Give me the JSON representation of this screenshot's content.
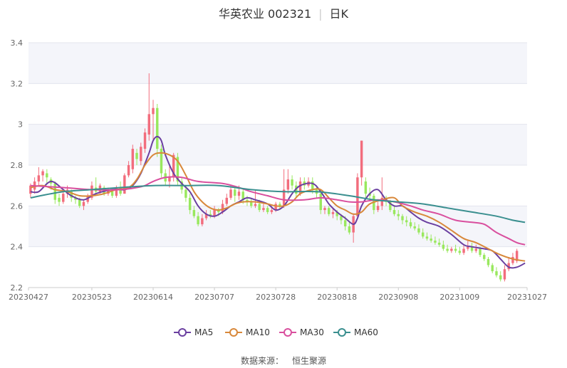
{
  "title": {
    "name": "华英农业 002321",
    "period": "日K"
  },
  "source": {
    "label": "数据来源：",
    "value": "恒生聚源"
  },
  "chart_data": {
    "type": "candlestick",
    "ylim": [
      2.2,
      3.4
    ],
    "yticks": [
      2.2,
      2.4,
      2.6,
      2.8,
      3,
      3.2,
      3.4
    ],
    "grid": true,
    "legend_position": "bottom",
    "xticks": [
      {
        "label": "20230427",
        "index": 0
      },
      {
        "label": "20230523",
        "index": 15
      },
      {
        "label": "20230614",
        "index": 30
      },
      {
        "label": "20230707",
        "index": 45
      },
      {
        "label": "20230728",
        "index": 60
      },
      {
        "label": "20230818",
        "index": 75
      },
      {
        "label": "20230908",
        "index": 90
      },
      {
        "label": "20231009",
        "index": 105
      },
      {
        "label": "20231027",
        "index": 119
      }
    ],
    "candles": [
      [
        2.66,
        2.7,
        2.64,
        2.71
      ],
      [
        2.68,
        2.72,
        2.66,
        2.74
      ],
      [
        2.72,
        2.75,
        2.7,
        2.79
      ],
      [
        2.75,
        2.77,
        2.72,
        2.78
      ],
      [
        2.76,
        2.74,
        2.71,
        2.78
      ],
      [
        2.73,
        2.71,
        2.68,
        2.74
      ],
      [
        2.71,
        2.63,
        2.61,
        2.72
      ],
      [
        2.64,
        2.62,
        2.6,
        2.66
      ],
      [
        2.62,
        2.66,
        2.61,
        2.67
      ],
      [
        2.66,
        2.68,
        2.64,
        2.7
      ],
      [
        2.67,
        2.64,
        2.62,
        2.68
      ],
      [
        2.64,
        2.63,
        2.61,
        2.65
      ],
      [
        2.63,
        2.6,
        2.59,
        2.64
      ],
      [
        2.6,
        2.62,
        2.58,
        2.63
      ],
      [
        2.62,
        2.65,
        2.61,
        2.66
      ],
      [
        2.64,
        2.7,
        2.63,
        2.72
      ],
      [
        2.69,
        2.67,
        2.65,
        2.74
      ],
      [
        2.67,
        2.7,
        2.66,
        2.71
      ],
      [
        2.69,
        2.66,
        2.65,
        2.7
      ],
      [
        2.66,
        2.68,
        2.65,
        2.69
      ],
      [
        2.67,
        2.65,
        2.64,
        2.68
      ],
      [
        2.65,
        2.69,
        2.64,
        2.7
      ],
      [
        2.69,
        2.66,
        2.65,
        2.72
      ],
      [
        2.66,
        2.75,
        2.66,
        2.76
      ],
      [
        2.75,
        2.8,
        2.74,
        2.82
      ],
      [
        2.78,
        2.88,
        2.76,
        2.9
      ],
      [
        2.86,
        2.83,
        2.8,
        2.88
      ],
      [
        2.82,
        2.89,
        2.8,
        2.91
      ],
      [
        2.88,
        2.96,
        2.86,
        2.98
      ],
      [
        2.95,
        3.05,
        2.92,
        3.25
      ],
      [
        3.05,
        3.08,
        2.92,
        3.12
      ],
      [
        3.08,
        2.88,
        2.84,
        3.1
      ],
      [
        2.88,
        2.76,
        2.74,
        2.9
      ],
      [
        2.76,
        2.72,
        2.7,
        2.78
      ],
      [
        2.72,
        2.74,
        2.69,
        2.8
      ],
      [
        2.74,
        2.85,
        2.72,
        2.86
      ],
      [
        2.84,
        2.72,
        2.7,
        2.86
      ],
      [
        2.72,
        2.68,
        2.66,
        2.74
      ],
      [
        2.68,
        2.64,
        2.62,
        2.7
      ],
      [
        2.64,
        2.58,
        2.56,
        2.66
      ],
      [
        2.58,
        2.55,
        2.54,
        2.6
      ],
      [
        2.55,
        2.51,
        2.5,
        2.57
      ],
      [
        2.51,
        2.54,
        2.5,
        2.56
      ],
      [
        2.54,
        2.56,
        2.53,
        2.58
      ],
      [
        2.56,
        2.55,
        2.54,
        2.58
      ],
      [
        2.55,
        2.58,
        2.54,
        2.6
      ],
      [
        2.58,
        2.57,
        2.55,
        2.59
      ],
      [
        2.57,
        2.61,
        2.56,
        2.63
      ],
      [
        2.61,
        2.64,
        2.6,
        2.66
      ],
      [
        2.64,
        2.68,
        2.63,
        2.7
      ],
      [
        2.68,
        2.65,
        2.62,
        2.7
      ],
      [
        2.65,
        2.67,
        2.63,
        2.7
      ],
      [
        2.67,
        2.63,
        2.61,
        2.68
      ],
      [
        2.63,
        2.62,
        2.6,
        2.65
      ],
      [
        2.62,
        2.6,
        2.59,
        2.64
      ],
      [
        2.6,
        2.61,
        2.59,
        2.68
      ],
      [
        2.61,
        2.58,
        2.57,
        2.63
      ],
      [
        2.58,
        2.59,
        2.57,
        2.61
      ],
      [
        2.59,
        2.57,
        2.56,
        2.6
      ],
      [
        2.57,
        2.58,
        2.56,
        2.6
      ],
      [
        2.58,
        2.61,
        2.57,
        2.62
      ],
      [
        2.61,
        2.6,
        2.58,
        2.62
      ],
      [
        2.6,
        2.68,
        2.59,
        2.78
      ],
      [
        2.68,
        2.73,
        2.66,
        2.78
      ],
      [
        2.73,
        2.7,
        2.68,
        2.75
      ],
      [
        2.7,
        2.66,
        2.64,
        2.72
      ],
      [
        2.66,
        2.72,
        2.65,
        2.74
      ],
      [
        2.72,
        2.7,
        2.68,
        2.74
      ],
      [
        2.7,
        2.72,
        2.69,
        2.74
      ],
      [
        2.72,
        2.68,
        2.66,
        2.74
      ],
      [
        2.68,
        2.66,
        2.64,
        2.7
      ],
      [
        2.66,
        2.58,
        2.56,
        2.68
      ],
      [
        2.58,
        2.59,
        2.56,
        2.6
      ],
      [
        2.59,
        2.56,
        2.55,
        2.6
      ],
      [
        2.56,
        2.57,
        2.54,
        2.59
      ],
      [
        2.57,
        2.55,
        2.53,
        2.58
      ],
      [
        2.55,
        2.53,
        2.51,
        2.56
      ],
      [
        2.53,
        2.5,
        2.48,
        2.55
      ],
      [
        2.5,
        2.47,
        2.46,
        2.52
      ],
      [
        2.47,
        2.55,
        2.42,
        2.56
      ],
      [
        2.55,
        2.74,
        2.54,
        2.76
      ],
      [
        2.74,
        2.92,
        2.7,
        2.92
      ],
      [
        2.72,
        2.66,
        2.64,
        2.74
      ],
      [
        2.66,
        2.65,
        2.63,
        2.69
      ],
      [
        2.65,
        2.58,
        2.56,
        2.66
      ],
      [
        2.58,
        2.6,
        2.57,
        2.62
      ],
      [
        2.6,
        2.64,
        2.58,
        2.74
      ],
      [
        2.64,
        2.62,
        2.6,
        2.65
      ],
      [
        2.62,
        2.58,
        2.57,
        2.63
      ],
      [
        2.58,
        2.56,
        2.55,
        2.6
      ],
      [
        2.56,
        2.55,
        2.53,
        2.58
      ],
      [
        2.55,
        2.53,
        2.51,
        2.56
      ],
      [
        2.53,
        2.52,
        2.5,
        2.55
      ],
      [
        2.52,
        2.5,
        2.49,
        2.54
      ],
      [
        2.5,
        2.49,
        2.48,
        2.52
      ],
      [
        2.49,
        2.47,
        2.46,
        2.51
      ],
      [
        2.47,
        2.45,
        2.44,
        2.49
      ],
      [
        2.45,
        2.44,
        2.43,
        2.47
      ],
      [
        2.44,
        2.43,
        2.42,
        2.46
      ],
      [
        2.43,
        2.42,
        2.41,
        2.45
      ],
      [
        2.42,
        2.41,
        2.4,
        2.44
      ],
      [
        2.41,
        2.39,
        2.38,
        2.43
      ],
      [
        2.39,
        2.38,
        2.37,
        2.41
      ],
      [
        2.38,
        2.39,
        2.37,
        2.4
      ],
      [
        2.39,
        2.38,
        2.37,
        2.41
      ],
      [
        2.38,
        2.37,
        2.36,
        2.4
      ],
      [
        2.37,
        2.39,
        2.36,
        2.41
      ],
      [
        2.39,
        2.4,
        2.38,
        2.43
      ],
      [
        2.4,
        2.38,
        2.37,
        2.42
      ],
      [
        2.38,
        2.39,
        2.37,
        2.41
      ],
      [
        2.39,
        2.36,
        2.35,
        2.4
      ],
      [
        2.36,
        2.34,
        2.33,
        2.37
      ],
      [
        2.34,
        2.31,
        2.3,
        2.35
      ],
      [
        2.31,
        2.28,
        2.27,
        2.32
      ],
      [
        2.28,
        2.26,
        2.25,
        2.3
      ],
      [
        2.26,
        2.24,
        2.23,
        2.28
      ],
      [
        2.24,
        2.29,
        2.23,
        2.31
      ],
      [
        2.29,
        2.32,
        2.28,
        2.35
      ],
      [
        2.32,
        2.35,
        2.31,
        2.37
      ],
      [
        2.33,
        2.38,
        2.32,
        2.39
      ]
    ],
    "series": [
      {
        "name": "MA5",
        "color": "#6a3fa0",
        "anchors": [
          [
            0,
            2.67
          ],
          [
            2,
            2.67
          ],
          [
            5,
            2.72
          ],
          [
            8,
            2.68
          ],
          [
            10,
            2.65
          ],
          [
            13,
            2.63
          ],
          [
            16,
            2.66
          ],
          [
            20,
            2.68
          ],
          [
            23,
            2.68
          ],
          [
            25,
            2.7
          ],
          [
            27,
            2.76
          ],
          [
            29,
            2.86
          ],
          [
            30,
            2.92
          ],
          [
            31,
            2.94
          ],
          [
            32,
            2.92
          ],
          [
            33,
            2.85
          ],
          [
            35,
            2.76
          ],
          [
            37,
            2.71
          ],
          [
            39,
            2.67
          ],
          [
            41,
            2.6
          ],
          [
            43,
            2.56
          ],
          [
            45,
            2.55
          ],
          [
            47,
            2.57
          ],
          [
            49,
            2.6
          ],
          [
            51,
            2.62
          ],
          [
            53,
            2.64
          ],
          [
            55,
            2.63
          ],
          [
            58,
            2.61
          ],
          [
            60,
            2.58
          ],
          [
            62,
            2.6
          ],
          [
            64,
            2.66
          ],
          [
            66,
            2.7
          ],
          [
            69,
            2.71
          ],
          [
            71,
            2.67
          ],
          [
            73,
            2.61
          ],
          [
            75,
            2.57
          ],
          [
            77,
            2.54
          ],
          [
            79,
            2.51
          ],
          [
            80,
            2.54
          ],
          [
            81,
            2.6
          ],
          [
            83,
            2.66
          ],
          [
            85,
            2.68
          ],
          [
            87,
            2.63
          ],
          [
            89,
            2.6
          ],
          [
            91,
            2.6
          ],
          [
            93,
            2.57
          ],
          [
            95,
            2.54
          ],
          [
            97,
            2.52
          ],
          [
            100,
            2.5
          ],
          [
            103,
            2.46
          ],
          [
            106,
            2.41
          ],
          [
            108,
            2.4
          ],
          [
            111,
            2.39
          ],
          [
            113,
            2.38
          ],
          [
            115,
            2.34
          ],
          [
            117,
            2.3
          ],
          [
            119,
            2.3
          ],
          [
            121,
            2.32
          ]
        ]
      },
      {
        "name": "MA10",
        "color": "#d8883a",
        "anchors": [
          [
            0,
            2.69
          ],
          [
            3,
            2.7
          ],
          [
            6,
            2.68
          ],
          [
            9,
            2.67
          ],
          [
            12,
            2.65
          ],
          [
            15,
            2.65
          ],
          [
            18,
            2.66
          ],
          [
            21,
            2.68
          ],
          [
            24,
            2.69
          ],
          [
            26,
            2.73
          ],
          [
            28,
            2.8
          ],
          [
            30,
            2.85
          ],
          [
            32,
            2.86
          ],
          [
            34,
            2.85
          ],
          [
            36,
            2.82
          ],
          [
            38,
            2.75
          ],
          [
            40,
            2.67
          ],
          [
            42,
            2.62
          ],
          [
            44,
            2.59
          ],
          [
            46,
            2.58
          ],
          [
            48,
            2.59
          ],
          [
            50,
            2.61
          ],
          [
            52,
            2.62
          ],
          [
            55,
            2.62
          ],
          [
            58,
            2.61
          ],
          [
            60,
            2.6
          ],
          [
            62,
            2.6
          ],
          [
            64,
            2.62
          ],
          [
            66,
            2.66
          ],
          [
            69,
            2.68
          ],
          [
            71,
            2.68
          ],
          [
            73,
            2.64
          ],
          [
            75,
            2.6
          ],
          [
            77,
            2.58
          ],
          [
            79,
            2.56
          ],
          [
            81,
            2.57
          ],
          [
            83,
            2.61
          ],
          [
            86,
            2.63
          ],
          [
            89,
            2.64
          ],
          [
            91,
            2.6
          ],
          [
            94,
            2.57
          ],
          [
            97,
            2.55
          ],
          [
            100,
            2.52
          ],
          [
            103,
            2.48
          ],
          [
            106,
            2.44
          ],
          [
            109,
            2.42
          ],
          [
            112,
            2.39
          ],
          [
            115,
            2.36
          ],
          [
            118,
            2.34
          ],
          [
            121,
            2.33
          ]
        ]
      },
      {
        "name": "MA30",
        "color": "#d94f9e",
        "anchors": [
          [
            0,
            2.7
          ],
          [
            8,
            2.69
          ],
          [
            15,
            2.68
          ],
          [
            22,
            2.68
          ],
          [
            26,
            2.69
          ],
          [
            28,
            2.7
          ],
          [
            30,
            2.72
          ],
          [
            33,
            2.74
          ],
          [
            37,
            2.74
          ],
          [
            41,
            2.72
          ],
          [
            47,
            2.71
          ],
          [
            51,
            2.69
          ],
          [
            54,
            2.67
          ],
          [
            58,
            2.65
          ],
          [
            62,
            2.63
          ],
          [
            67,
            2.63
          ],
          [
            71,
            2.64
          ],
          [
            75,
            2.63
          ],
          [
            78,
            2.62
          ],
          [
            81,
            2.62
          ],
          [
            85,
            2.63
          ],
          [
            89,
            2.62
          ],
          [
            93,
            2.6
          ],
          [
            96,
            2.58
          ],
          [
            100,
            2.56
          ],
          [
            104,
            2.53
          ],
          [
            108,
            2.52
          ],
          [
            111,
            2.51
          ],
          [
            114,
            2.47
          ],
          [
            117,
            2.44
          ],
          [
            119,
            2.42
          ],
          [
            121,
            2.41
          ]
        ]
      },
      {
        "name": "MA60",
        "color": "#3a8f8f",
        "anchors": [
          [
            0,
            2.64
          ],
          [
            8,
            2.67
          ],
          [
            15,
            2.68
          ],
          [
            22,
            2.69
          ],
          [
            30,
            2.7
          ],
          [
            38,
            2.7
          ],
          [
            46,
            2.7
          ],
          [
            54,
            2.68
          ],
          [
            62,
            2.67
          ],
          [
            70,
            2.67
          ],
          [
            78,
            2.65
          ],
          [
            84,
            2.63
          ],
          [
            90,
            2.62
          ],
          [
            96,
            2.61
          ],
          [
            102,
            2.59
          ],
          [
            108,
            2.57
          ],
          [
            114,
            2.55
          ],
          [
            118,
            2.53
          ],
          [
            121,
            2.52
          ]
        ]
      }
    ],
    "up_color": "#f26d7d",
    "down_color": "#99e85e"
  }
}
